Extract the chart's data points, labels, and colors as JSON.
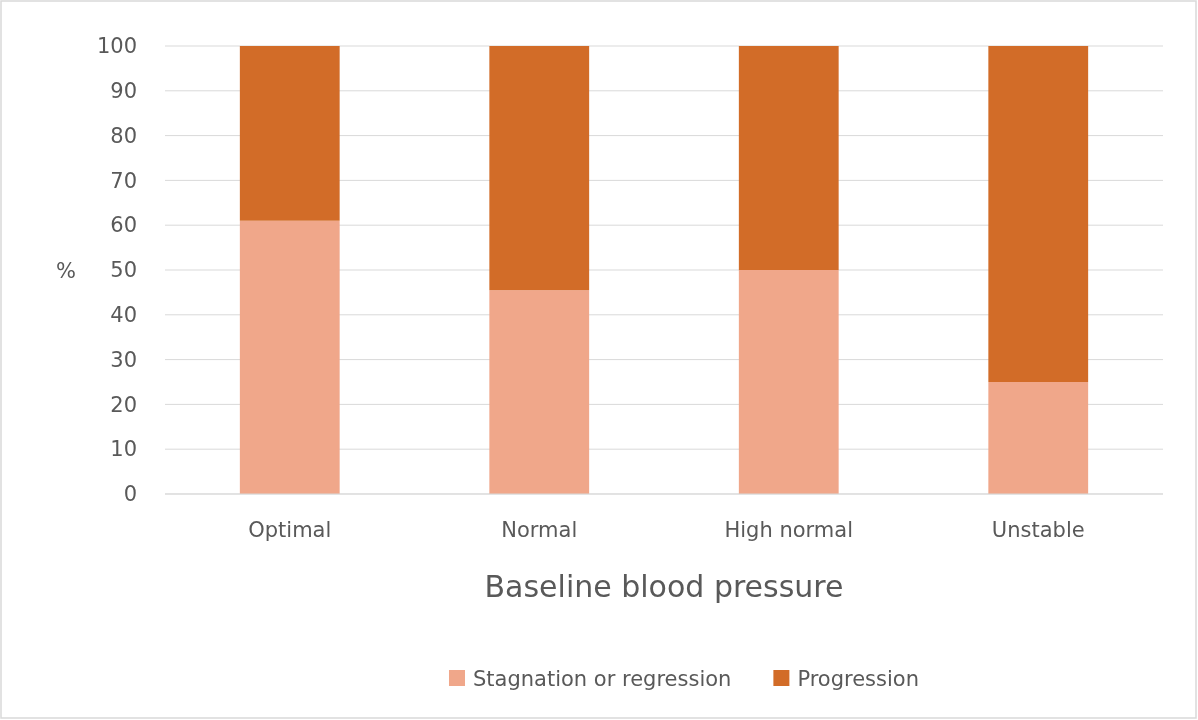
{
  "chart_data": {
    "type": "bar",
    "stacked": true,
    "xlabel": "Baseline blood pressure",
    "ylabel": "%",
    "categories": [
      "Optimal",
      "Normal",
      "High normal",
      "Unstable"
    ],
    "series": [
      {
        "name": "Stagnation or regression",
        "color": "#f0a78a",
        "values": [
          61,
          45.5,
          50,
          25
        ]
      },
      {
        "name": "Progression",
        "color": "#d26c28",
        "values": [
          39,
          54.5,
          50,
          75
        ]
      }
    ],
    "ylim": [
      0,
      100
    ],
    "yticks": [
      0,
      10,
      20,
      30,
      40,
      50,
      60,
      70,
      80,
      90,
      100
    ],
    "grid": "y",
    "legend": "bottom"
  }
}
